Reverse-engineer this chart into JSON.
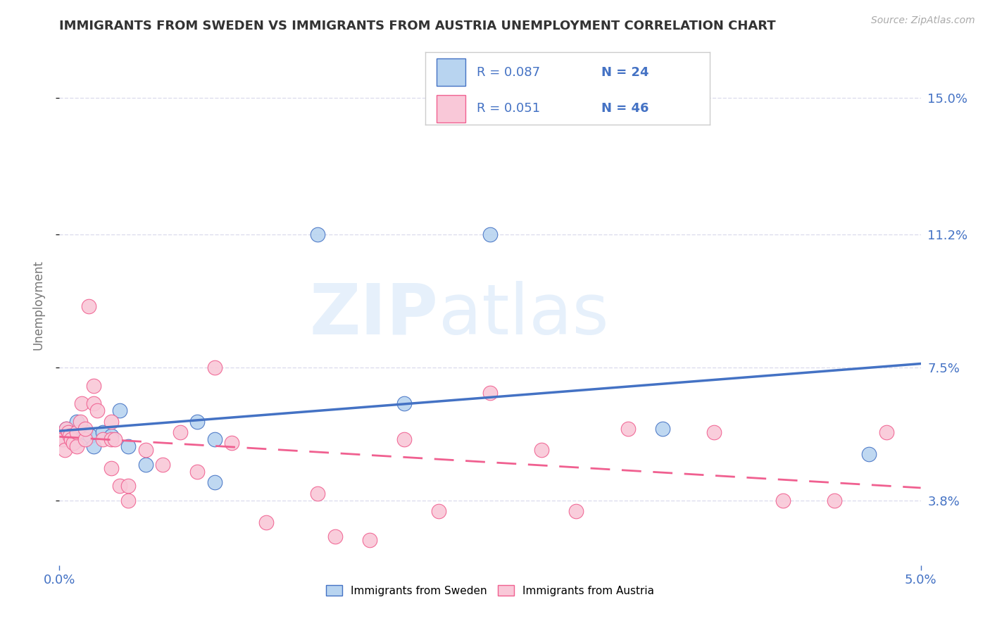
{
  "title": "IMMIGRANTS FROM SWEDEN VS IMMIGRANTS FROM AUSTRIA UNEMPLOYMENT CORRELATION CHART",
  "source": "Source: ZipAtlas.com",
  "ylabel": "Unemployment",
  "y_ticks": [
    0.038,
    0.075,
    0.112,
    0.15
  ],
  "y_tick_labels": [
    "3.8%",
    "7.5%",
    "11.2%",
    "15.0%"
  ],
  "x_lim": [
    0.0,
    0.05
  ],
  "y_lim": [
    0.02,
    0.165
  ],
  "watermark_zip": "ZIP",
  "watermark_atlas": "atlas",
  "sweden_color": "#b8d4f0",
  "austria_color": "#f9c8d8",
  "sweden_line_color": "#4472c4",
  "austria_line_color": "#f06090",
  "sweden_R": 0.087,
  "sweden_N": 24,
  "austria_R": 0.051,
  "austria_N": 46,
  "legend_sweden_label": "Immigrants from Sweden",
  "legend_austria_label": "Immigrants from Austria",
  "sweden_points_x": [
    0.0002,
    0.0004,
    0.0005,
    0.0006,
    0.0008,
    0.001,
    0.001,
    0.0012,
    0.0015,
    0.0018,
    0.002,
    0.0025,
    0.003,
    0.0035,
    0.004,
    0.005,
    0.008,
    0.009,
    0.009,
    0.015,
    0.02,
    0.025,
    0.035,
    0.047
  ],
  "sweden_points_y": [
    0.055,
    0.058,
    0.056,
    0.057,
    0.054,
    0.056,
    0.06,
    0.055,
    0.057,
    0.056,
    0.053,
    0.057,
    0.056,
    0.063,
    0.053,
    0.048,
    0.06,
    0.055,
    0.043,
    0.112,
    0.065,
    0.112,
    0.058,
    0.051
  ],
  "austria_points_x": [
    0.0001,
    0.0002,
    0.0003,
    0.0004,
    0.0005,
    0.0006,
    0.0007,
    0.0008,
    0.001,
    0.001,
    0.0012,
    0.0013,
    0.0015,
    0.0015,
    0.0017,
    0.002,
    0.002,
    0.0022,
    0.0025,
    0.003,
    0.003,
    0.003,
    0.0032,
    0.0035,
    0.004,
    0.004,
    0.005,
    0.006,
    0.007,
    0.008,
    0.009,
    0.01,
    0.012,
    0.015,
    0.016,
    0.018,
    0.02,
    0.022,
    0.025,
    0.028,
    0.03,
    0.033,
    0.038,
    0.042,
    0.045,
    0.048
  ],
  "austria_points_y": [
    0.056,
    0.055,
    0.052,
    0.058,
    0.057,
    0.056,
    0.055,
    0.054,
    0.053,
    0.057,
    0.06,
    0.065,
    0.055,
    0.058,
    0.092,
    0.065,
    0.07,
    0.063,
    0.055,
    0.055,
    0.06,
    0.047,
    0.055,
    0.042,
    0.042,
    0.038,
    0.052,
    0.048,
    0.057,
    0.046,
    0.075,
    0.054,
    0.032,
    0.04,
    0.028,
    0.027,
    0.055,
    0.035,
    0.068,
    0.052,
    0.035,
    0.058,
    0.057,
    0.038,
    0.038,
    0.057
  ],
  "background_color": "#ffffff",
  "grid_color": "#ddddee",
  "title_color": "#333333",
  "axis_color": "#4472c4",
  "source_color": "#aaaaaa"
}
